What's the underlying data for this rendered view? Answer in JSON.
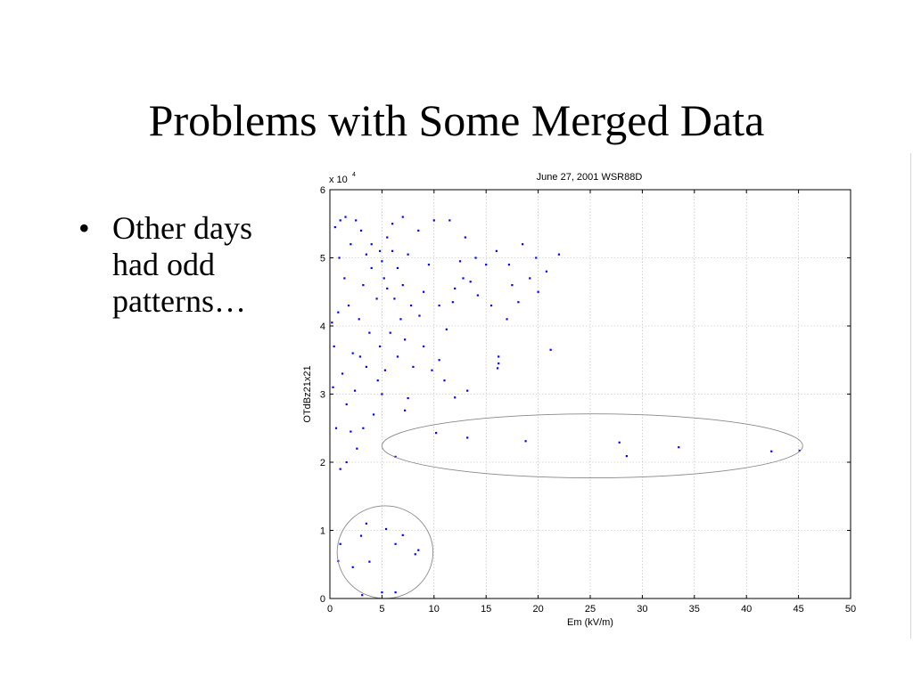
{
  "slide": {
    "title": "Problems with Some Merged Data",
    "bullets": [
      {
        "lines": [
          "Other days",
          "had odd",
          "patterns…"
        ]
      }
    ],
    "bullet_symbol": "•"
  },
  "chart_data": {
    "type": "scatter",
    "title": "June 27, 2001 WSR88D",
    "xlabel": "Em (kV/m)",
    "ylabel": "OTdBz21x21",
    "xlim": [
      0,
      50
    ],
    "ylim": [
      0,
      6
    ],
    "y_multiplier_label": "x 10",
    "y_multiplier_exponent": "4",
    "xticks": [
      0,
      5,
      10,
      15,
      20,
      25,
      30,
      35,
      40,
      45,
      50
    ],
    "yticks": [
      0,
      1,
      2,
      3,
      4,
      5,
      6
    ],
    "grid": true,
    "marker_color": "#0000ff",
    "annotation_color": "#888888",
    "series": [
      {
        "points": [
          [
            10.2,
            2.43
          ],
          [
            13.2,
            2.36
          ],
          [
            18.8,
            2.31
          ],
          [
            27.8,
            2.29
          ],
          [
            28.5,
            2.09
          ],
          [
            33.5,
            2.22
          ],
          [
            42.4,
            2.16
          ],
          [
            45.1,
            2.17
          ],
          [
            6.3,
            2.08
          ],
          [
            3.5,
            1.1
          ],
          [
            3.0,
            0.92
          ],
          [
            5.4,
            1.02
          ],
          [
            6.3,
            0.8
          ],
          [
            7.0,
            0.93
          ],
          [
            8.2,
            0.65
          ],
          [
            8.5,
            0.71
          ],
          [
            3.8,
            0.54
          ],
          [
            2.2,
            0.46
          ],
          [
            5.0,
            0.09
          ],
          [
            6.3,
            0.09
          ],
          [
            3.1,
            0.05
          ],
          [
            1.0,
            0.8
          ],
          [
            0.8,
            0.55
          ],
          [
            21.2,
            3.65
          ],
          [
            16.2,
            3.55
          ],
          [
            16.1,
            3.38
          ],
          [
            12.0,
            2.95
          ],
          [
            13.2,
            3.05
          ],
          [
            7.2,
            2.76
          ],
          [
            7.5,
            2.94
          ],
          [
            11.0,
            3.2
          ],
          [
            10.5,
            3.5
          ],
          [
            11.2,
            3.95
          ],
          [
            12.8,
            4.7
          ],
          [
            15.0,
            4.9
          ],
          [
            17.5,
            4.6
          ],
          [
            19.2,
            4.7
          ],
          [
            20.0,
            4.5
          ],
          [
            22.0,
            5.05
          ],
          [
            18.5,
            5.2
          ],
          [
            16.0,
            5.1
          ],
          [
            14.0,
            5.0
          ],
          [
            13.0,
            5.3
          ],
          [
            11.5,
            5.55
          ],
          [
            10.0,
            5.55
          ],
          [
            9.5,
            4.9
          ],
          [
            10.5,
            4.3
          ],
          [
            14.2,
            4.45
          ],
          [
            12.0,
            4.55
          ],
          [
            15.5,
            4.3
          ],
          [
            18.1,
            4.35
          ],
          [
            17.0,
            4.1
          ],
          [
            16.2,
            3.45
          ],
          [
            9.0,
            3.7
          ],
          [
            8.0,
            3.4
          ],
          [
            8.6,
            4.15
          ],
          [
            9.0,
            4.5
          ],
          [
            8.5,
            5.4
          ],
          [
            7.0,
            5.6
          ],
          [
            6.0,
            5.5
          ],
          [
            5.5,
            5.3
          ],
          [
            4.8,
            5.1
          ],
          [
            4.0,
            4.85
          ],
          [
            3.5,
            5.05
          ],
          [
            3.0,
            5.4
          ],
          [
            2.5,
            5.55
          ],
          [
            1.5,
            5.6
          ],
          [
            1.0,
            5.55
          ],
          [
            0.5,
            5.45
          ],
          [
            2.0,
            5.2
          ],
          [
            3.2,
            4.6
          ],
          [
            4.5,
            4.4
          ],
          [
            5.2,
            4.7
          ],
          [
            6.2,
            4.4
          ],
          [
            7.0,
            4.6
          ],
          [
            7.8,
            4.3
          ],
          [
            6.8,
            4.1
          ],
          [
            5.8,
            3.9
          ],
          [
            4.8,
            3.7
          ],
          [
            3.8,
            3.9
          ],
          [
            2.8,
            4.1
          ],
          [
            1.8,
            4.3
          ],
          [
            2.2,
            3.6
          ],
          [
            3.5,
            3.4
          ],
          [
            4.6,
            3.2
          ],
          [
            5.0,
            3.0
          ],
          [
            4.2,
            2.7
          ],
          [
            3.2,
            2.5
          ],
          [
            2.6,
            2.2
          ],
          [
            1.6,
            2.0
          ],
          [
            1.0,
            1.9
          ],
          [
            0.6,
            2.5
          ],
          [
            0.3,
            3.1
          ],
          [
            0.4,
            3.7
          ],
          [
            0.2,
            4.05
          ],
          [
            0.8,
            4.2
          ],
          [
            1.2,
            3.3
          ],
          [
            1.6,
            2.85
          ],
          [
            2.0,
            2.45
          ],
          [
            2.4,
            3.05
          ],
          [
            2.9,
            3.55
          ],
          [
            1.4,
            4.7
          ],
          [
            0.9,
            5.0
          ],
          [
            4.0,
            5.2
          ],
          [
            5.0,
            4.95
          ],
          [
            6.0,
            5.1
          ],
          [
            7.5,
            5.05
          ],
          [
            6.5,
            4.85
          ],
          [
            5.5,
            4.55
          ],
          [
            7.2,
            3.8
          ],
          [
            6.5,
            3.55
          ],
          [
            5.3,
            3.35
          ],
          [
            9.8,
            3.35
          ],
          [
            12.5,
            4.95
          ],
          [
            11.8,
            4.35
          ],
          [
            13.5,
            4.65
          ],
          [
            17.2,
            4.9
          ],
          [
            19.8,
            5.0
          ],
          [
            20.8,
            4.8
          ]
        ]
      }
    ],
    "annotations": [
      {
        "shape": "ellipse",
        "center": [
          25.2,
          2.24
        ],
        "radii": [
          20.2,
          0.47
        ]
      },
      {
        "shape": "ellipse",
        "center": [
          5.3,
          0.68
        ],
        "radii": [
          4.6,
          0.68
        ]
      }
    ]
  }
}
